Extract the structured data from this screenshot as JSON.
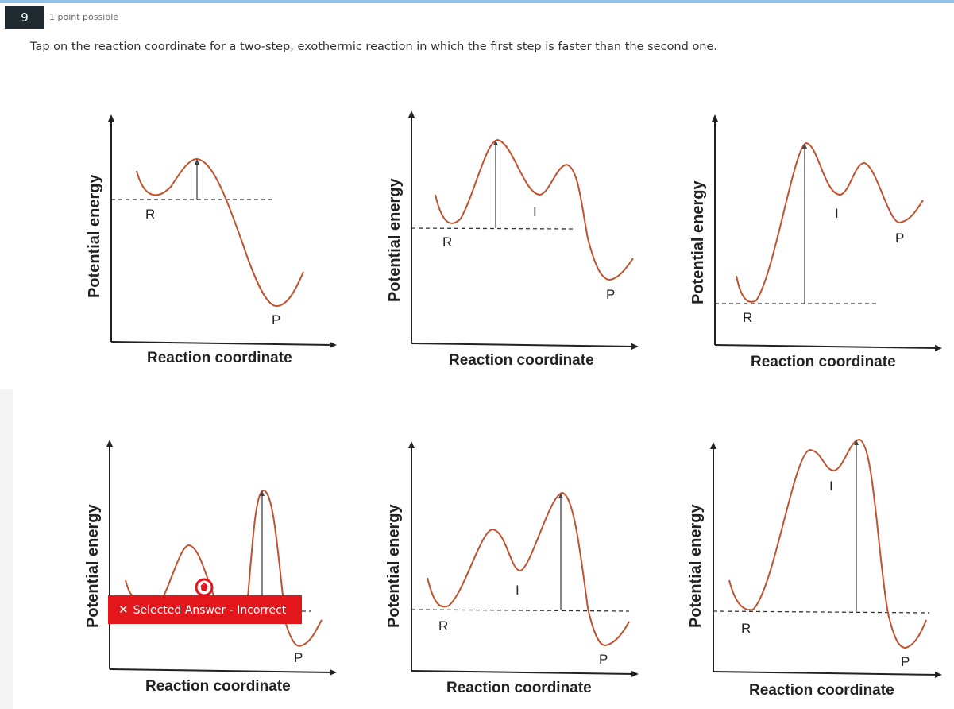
{
  "question": {
    "number": "9",
    "points": "1 point possible",
    "prompt": "Tap on the reaction coordinate for a two-step, exothermic reaction in which the first step is faster than the second one."
  },
  "graphs": [
    {
      "id": "graph-1",
      "ylabel": "Potential energy",
      "xlabel": "Reaction coordinate",
      "labels": [
        "R",
        "P"
      ]
    },
    {
      "id": "graph-2",
      "ylabel": "Potential energy",
      "xlabel": "Reaction coordinate",
      "labels": [
        "R",
        "I",
        "P"
      ]
    },
    {
      "id": "graph-3",
      "ylabel": "Potential energy",
      "xlabel": "Reaction coordinate",
      "labels": [
        "R",
        "I",
        "P"
      ]
    },
    {
      "id": "graph-4",
      "ylabel": "Potential energy",
      "xlabel": "Reaction coordinate",
      "labels": [
        "P"
      ]
    },
    {
      "id": "graph-5",
      "ylabel": "Potential energy",
      "xlabel": "Reaction coordinate",
      "labels": [
        "R",
        "I",
        "P"
      ]
    },
    {
      "id": "graph-6",
      "ylabel": "Potential energy",
      "xlabel": "Reaction coordinate",
      "labels": [
        "R",
        "I",
        "P"
      ]
    }
  ],
  "feedback": {
    "icon": "close-x-icon",
    "text": "Selected Answer - Incorrect",
    "color": "#e3161c"
  },
  "colors": {
    "curve": "#c0532e",
    "question_badge": "#1f2a30",
    "top_border": "#8ec4ea"
  }
}
